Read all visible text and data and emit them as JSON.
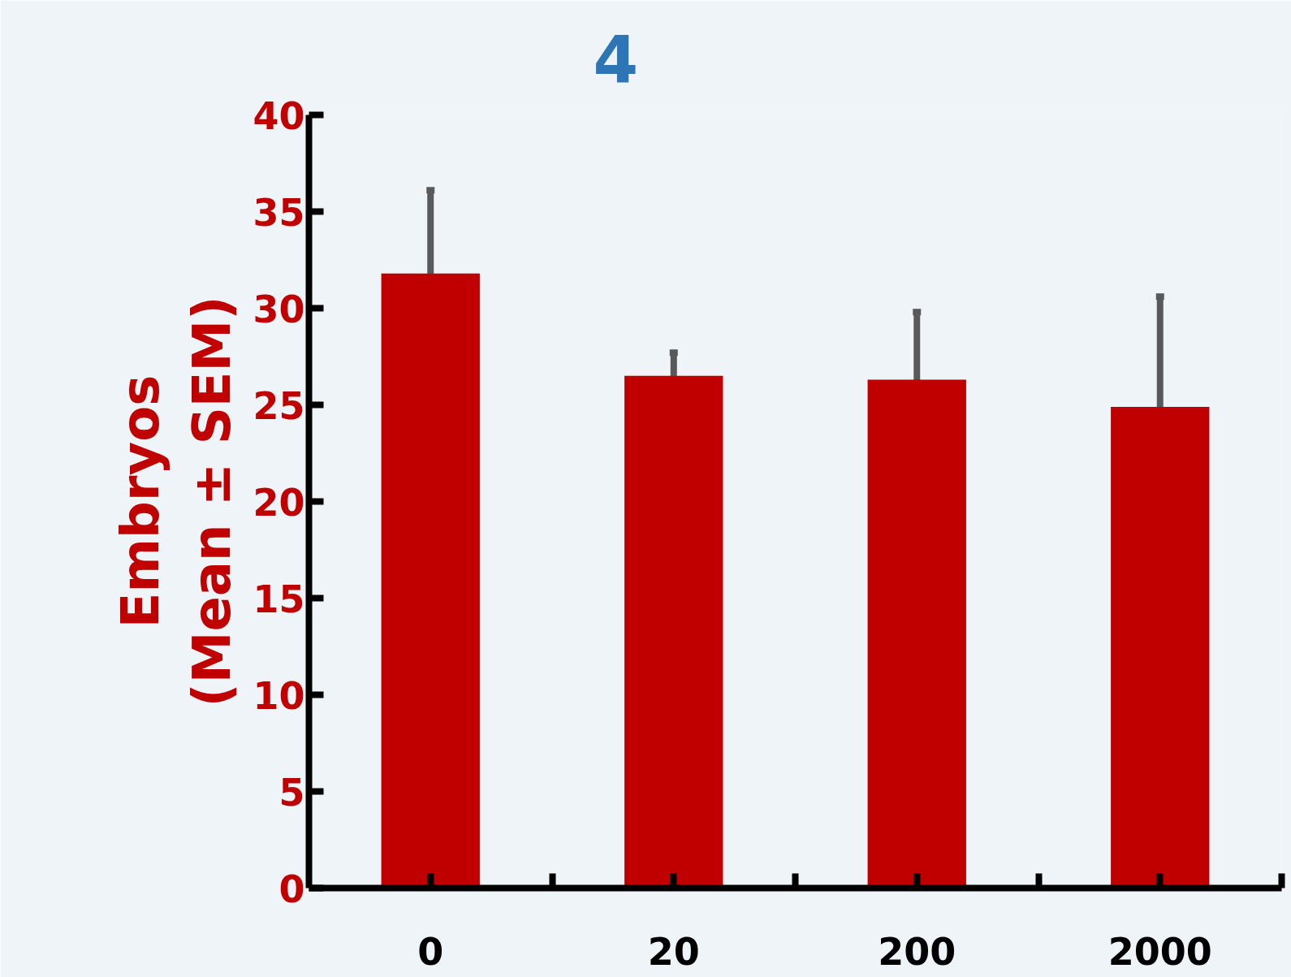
{
  "chart_data": {
    "type": "bar",
    "ylabel": "Embryos\n(Mean ± SEM)",
    "categories": [
      "0",
      "20",
      "200",
      "2000"
    ],
    "values": [
      31.8,
      26.5,
      26.3,
      24.9
    ],
    "errors": [
      4.3,
      1.2,
      3.5,
      5.7
    ],
    "color": "#c00000",
    "ylim": [
      0,
      40
    ],
    "yticks": [
      0,
      5,
      10,
      15,
      20,
      25,
      30,
      35,
      40
    ],
    "grid": false,
    "annotations": [
      "4"
    ]
  }
}
